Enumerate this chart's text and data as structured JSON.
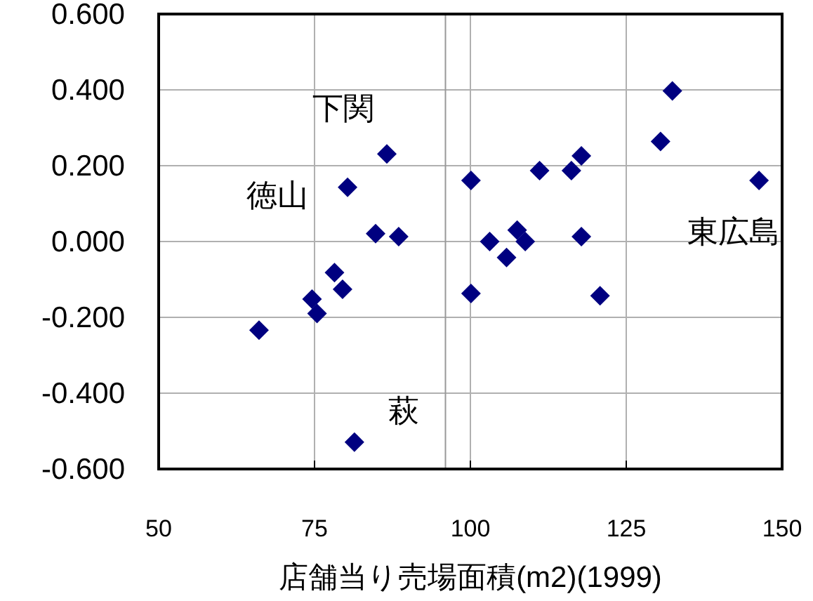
{
  "chart_data": {
    "type": "scatter",
    "xlabel": "店舗当り売場面積(m2)(1999)",
    "x": [
      80.3,
      86.6,
      84.8,
      88.5,
      100.1,
      111.1,
      116.2,
      117.8,
      117.8,
      103.1,
      107.5,
      108.8,
      130.5,
      132.4,
      146.3,
      105.8,
      78.2,
      79.5,
      74.6,
      75.4,
      66.1,
      100.1,
      120.8,
      81.4
    ],
    "values": [
      0.143,
      0.231,
      0.021,
      0.013,
      0.161,
      0.187,
      0.187,
      0.226,
      0.013,
      0.0,
      0.03,
      0.0,
      0.264,
      0.397,
      0.161,
      -0.042,
      -0.082,
      -0.126,
      -0.152,
      -0.19,
      -0.234,
      -0.137,
      -0.143,
      -0.529
    ],
    "color": "#000080",
    "marker": "diamond",
    "xlim": [
      50,
      150
    ],
    "xticks": [
      50,
      75,
      100,
      125,
      150
    ],
    "ylim": [
      -0.6,
      0.6
    ],
    "yticks": [
      {
        "value": -0.6,
        "label": "-0.600"
      },
      {
        "value": -0.4,
        "label": "-0.400"
      },
      {
        "value": -0.2,
        "label": "-0.200"
      },
      {
        "value": 0,
        "label": "0.000"
      },
      {
        "value": 0.2,
        "label": "0.200"
      },
      {
        "value": 0.4,
        "label": "0.400"
      },
      {
        "value": 0.6,
        "label": "0.600"
      }
    ],
    "grid": true,
    "ref_lines": [
      {
        "axis": "x",
        "value": 96,
        "color": "#999999"
      }
    ],
    "annotations": [
      {
        "text": "下関",
        "x": 86.6,
        "y": 0.231
      },
      {
        "text": "徳山",
        "x": 80.3,
        "y": 0.143
      },
      {
        "text": "東広島",
        "x": 146.3,
        "y": 0.161
      },
      {
        "text": "萩",
        "x": 81.4,
        "y": -0.529
      }
    ]
  }
}
